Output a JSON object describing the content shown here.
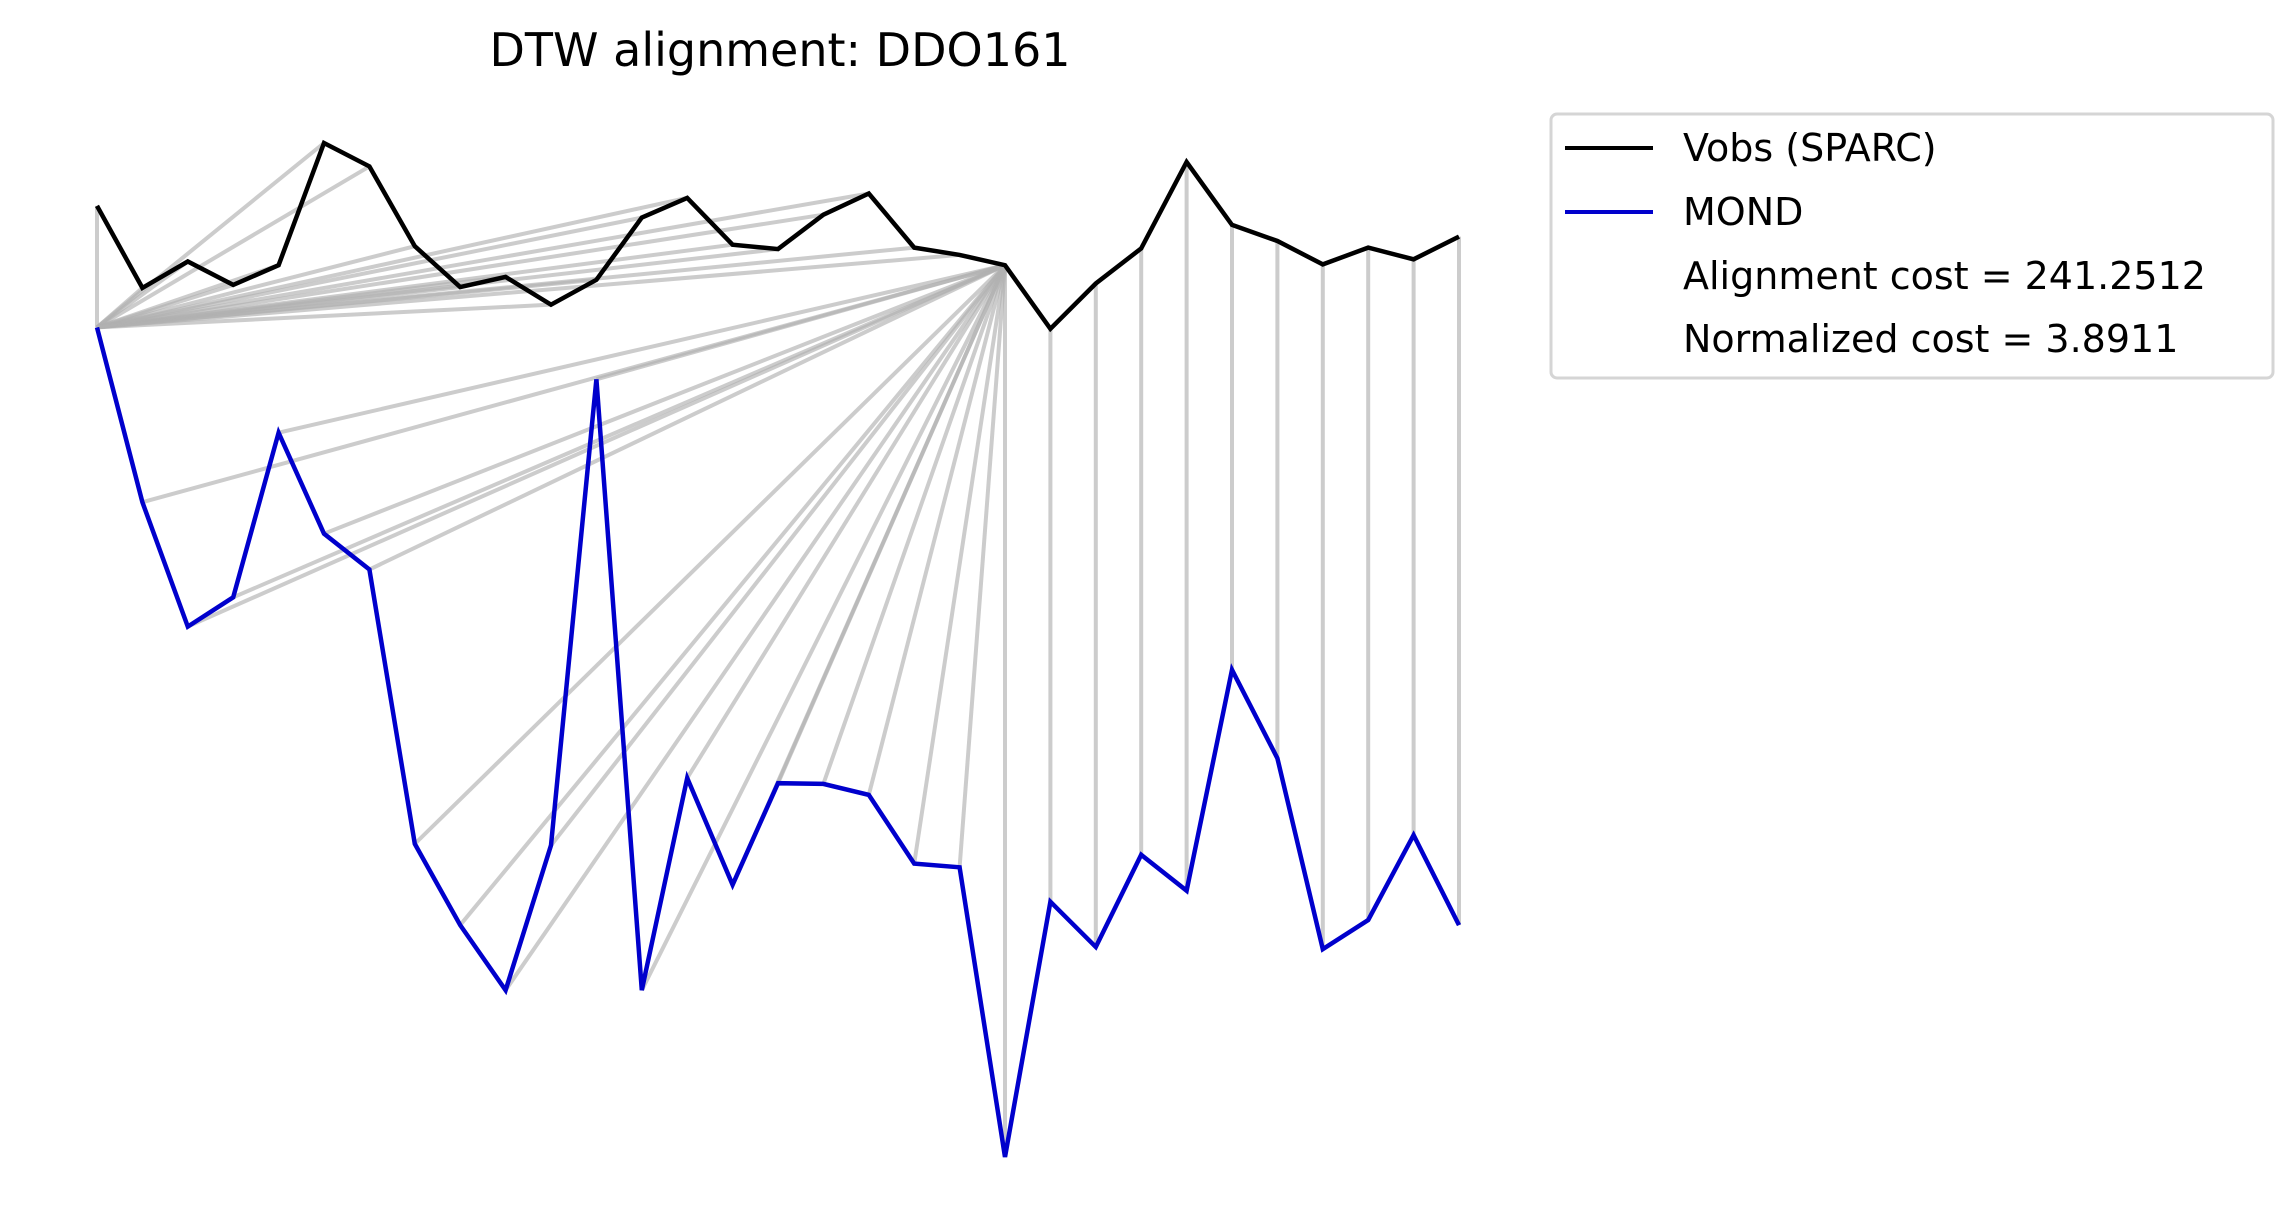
{
  "chart_data": {
    "type": "line",
    "title": "DTW alignment: DDO161",
    "xlabel": "",
    "ylabel": "",
    "axes_visible": false,
    "grid": false,
    "legend_position": "outside-top-right",
    "x": [
      0,
      1,
      2,
      3,
      4,
      5,
      6,
      7,
      8,
      9,
      10,
      11,
      12,
      13,
      14,
      15,
      16,
      17,
      18,
      19,
      20,
      21,
      22,
      23,
      24,
      25,
      26,
      27,
      28,
      29,
      30
    ],
    "series": [
      {
        "name": "Vobs (SPARC)",
        "color": "#000000",
        "values": [
          96.0,
          84.8,
          88.4,
          85.2,
          87.9,
          104.6,
          101.4,
          90.5,
          84.9,
          86.3,
          82.5,
          85.9,
          94.4,
          97.1,
          90.7,
          90.1,
          94.8,
          97.7,
          90.3,
          89.3,
          87.9,
          79.2,
          85.4,
          90.2,
          102.0,
          93.4,
          91.2,
          88.0,
          90.3,
          88.7,
          91.8
        ]
      },
      {
        "name": "MOND",
        "color": "#0000cc",
        "values": [
          79.4,
          55.5,
          38.5,
          42.5,
          65.0,
          51.2,
          46.3,
          8.8,
          -2.3,
          -11.2,
          8.6,
          72.3,
          -11.2,
          17.8,
          3.2,
          17.1,
          17.0,
          15.5,
          6.1,
          5.6,
          -34.0,
          0.9,
          -5.3,
          7.3,
          2.4,
          32.6,
          20.5,
          -5.6,
          -1.6,
          10.0,
          -2.3
        ]
      }
    ],
    "warping_path": [
      [
        0,
        0
      ],
      [
        1,
        0
      ],
      [
        2,
        0
      ],
      [
        3,
        0
      ],
      [
        4,
        0
      ],
      [
        5,
        0
      ],
      [
        6,
        0
      ],
      [
        7,
        0
      ],
      [
        8,
        0
      ],
      [
        9,
        0
      ],
      [
        10,
        0
      ],
      [
        11,
        0
      ],
      [
        12,
        0
      ],
      [
        13,
        0
      ],
      [
        14,
        0
      ],
      [
        15,
        0
      ],
      [
        16,
        0
      ],
      [
        17,
        0
      ],
      [
        18,
        0
      ],
      [
        19,
        0
      ],
      [
        20,
        1
      ],
      [
        20,
        2
      ],
      [
        20,
        3
      ],
      [
        20,
        4
      ],
      [
        20,
        5
      ],
      [
        20,
        6
      ],
      [
        20,
        7
      ],
      [
        20,
        8
      ],
      [
        20,
        9
      ],
      [
        20,
        10
      ],
      [
        20,
        11
      ],
      [
        20,
        12
      ],
      [
        20,
        13
      ],
      [
        20,
        14
      ],
      [
        20,
        15
      ],
      [
        20,
        16
      ],
      [
        20,
        17
      ],
      [
        20,
        18
      ],
      [
        20,
        19
      ],
      [
        20,
        20
      ],
      [
        21,
        21
      ],
      [
        22,
        22
      ],
      [
        23,
        23
      ],
      [
        24,
        24
      ],
      [
        25,
        25
      ],
      [
        26,
        26
      ],
      [
        27,
        27
      ],
      [
        28,
        28
      ],
      [
        29,
        29
      ],
      [
        30,
        30
      ]
    ],
    "legend": {
      "entries": [
        "Vobs (SPARC)",
        "MOND"
      ],
      "alignment_cost_label": "Alignment cost = 241.2512",
      "normalized_cost_label": "Normalized cost = 3.8911"
    },
    "connector_color": "#b0b0b0"
  }
}
